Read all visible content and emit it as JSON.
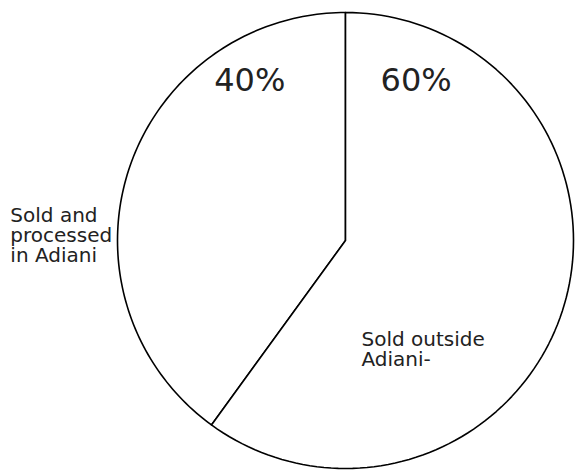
{
  "chart_data": {
    "type": "pie",
    "categories": [
      "Sold and processed in Adiani",
      "Sold outside Adiani-"
    ],
    "values": [
      40,
      60
    ],
    "value_labels": [
      "40%",
      "60%"
    ],
    "data_labels": true,
    "colors": [
      "#ffffff",
      "#ffffff"
    ]
  }
}
